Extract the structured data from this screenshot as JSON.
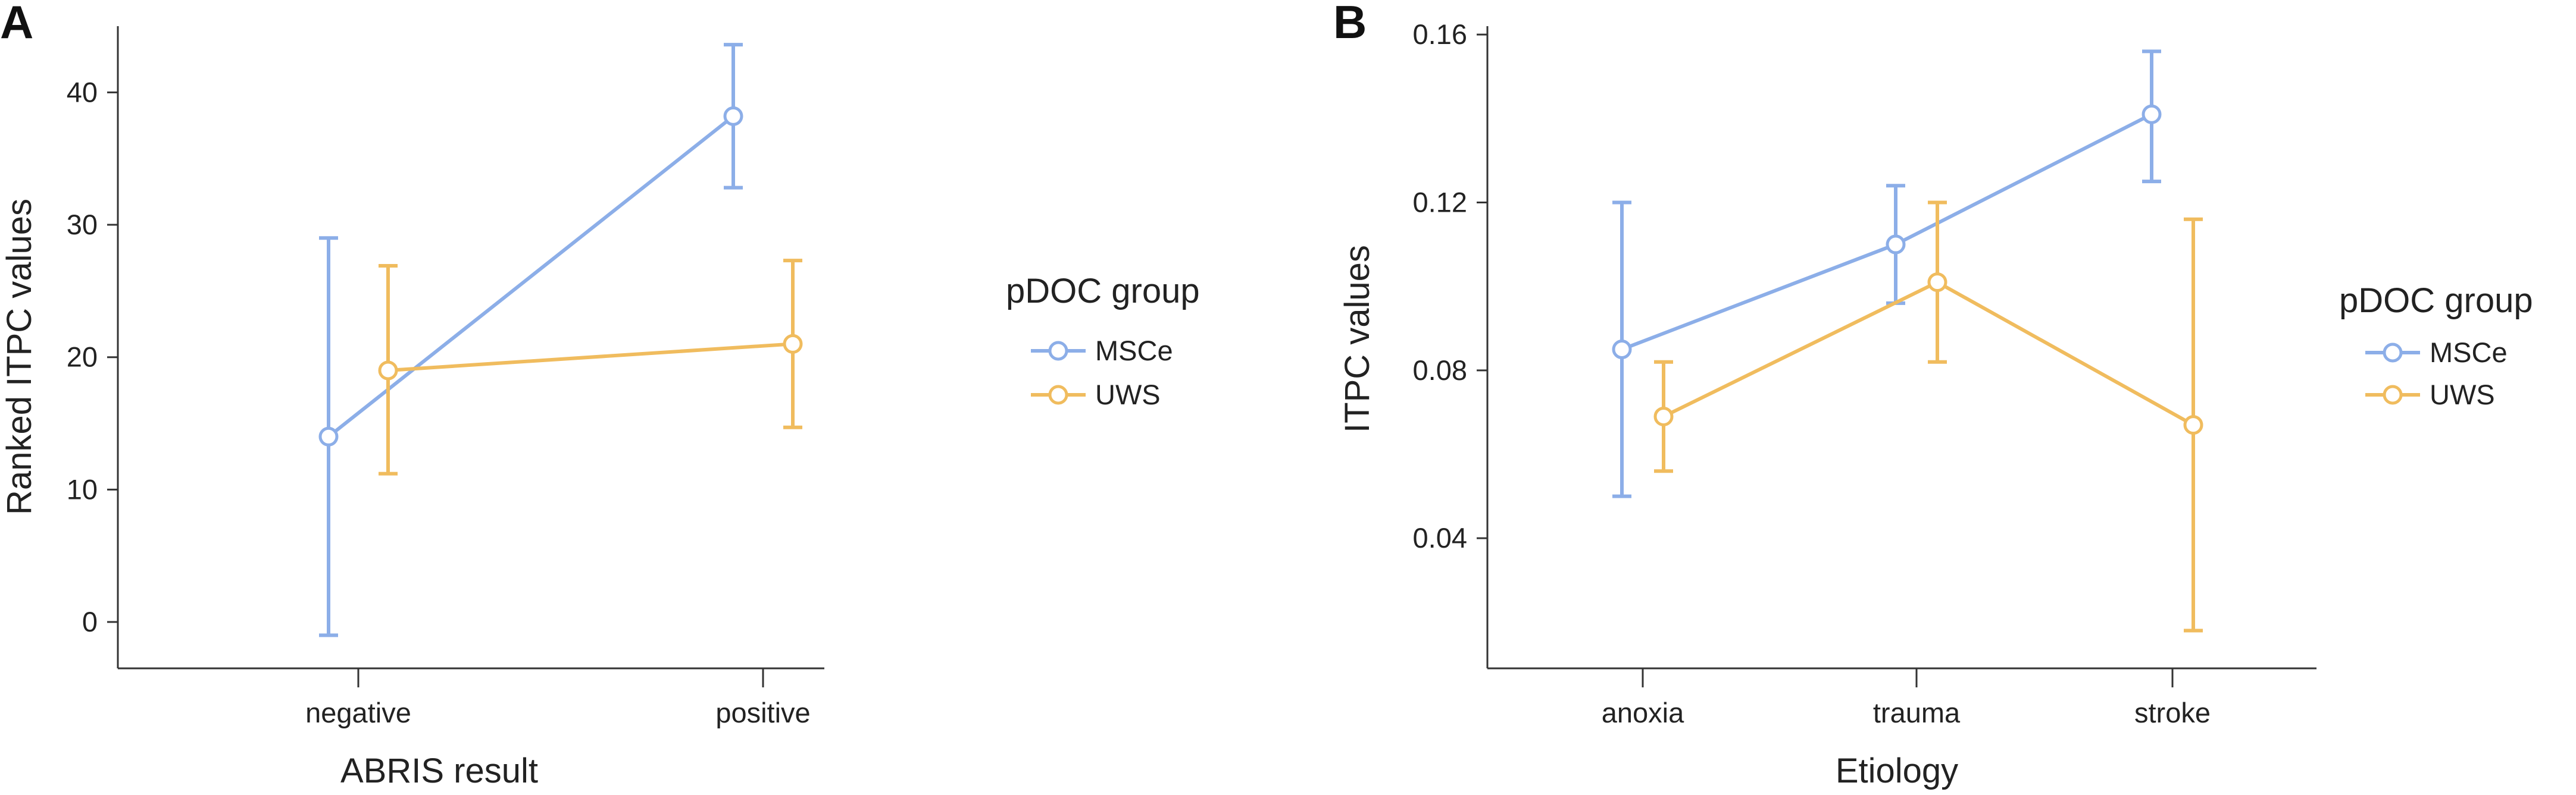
{
  "chart_data": [
    {
      "panel": "A",
      "type": "line",
      "xlabel": "ABRIS result",
      "ylabel": "Ranked ITPC values",
      "categories": [
        "negative",
        "positive"
      ],
      "yticks": [
        "0",
        "10",
        "20",
        "30",
        "40"
      ],
      "ytick_values": [
        0,
        10,
        20,
        30,
        40
      ],
      "ylim": [
        -3.5,
        45
      ],
      "legend": {
        "title": "pDOC group",
        "position": "right"
      },
      "series": [
        {
          "name": "MSCe",
          "color": "#8caee8",
          "values": [
            14,
            38.2
          ],
          "lower": [
            -1,
            32.8
          ],
          "upper": [
            29,
            43.6
          ]
        },
        {
          "name": "UWS",
          "color": "#f0bc5e",
          "values": [
            19,
            21
          ],
          "lower": [
            11.2,
            14.7
          ],
          "upper": [
            26.9,
            27.3
          ]
        }
      ]
    },
    {
      "panel": "B",
      "type": "line",
      "xlabel": "Etiology",
      "ylabel": "ITPC values",
      "categories": [
        "anoxia",
        "trauma",
        "stroke"
      ],
      "yticks": [
        "0.04",
        "0.08",
        "0.12",
        "0.16"
      ],
      "ytick_values": [
        0.04,
        0.08,
        0.12,
        0.16
      ],
      "ylim": [
        0.009,
        0.162
      ],
      "legend": {
        "title": "pDOC group",
        "position": "right"
      },
      "series": [
        {
          "name": "MSCe",
          "color": "#8caee8",
          "values": [
            0.085,
            0.11,
            0.141
          ],
          "lower": [
            0.05,
            0.096,
            0.125
          ],
          "upper": [
            0.12,
            0.124,
            0.156
          ]
        },
        {
          "name": "UWS",
          "color": "#f0bc5e",
          "values": [
            0.069,
            0.101,
            0.067
          ],
          "lower": [
            0.056,
            0.082,
            0.018
          ],
          "upper": [
            0.082,
            0.12,
            0.116
          ]
        }
      ]
    }
  ]
}
